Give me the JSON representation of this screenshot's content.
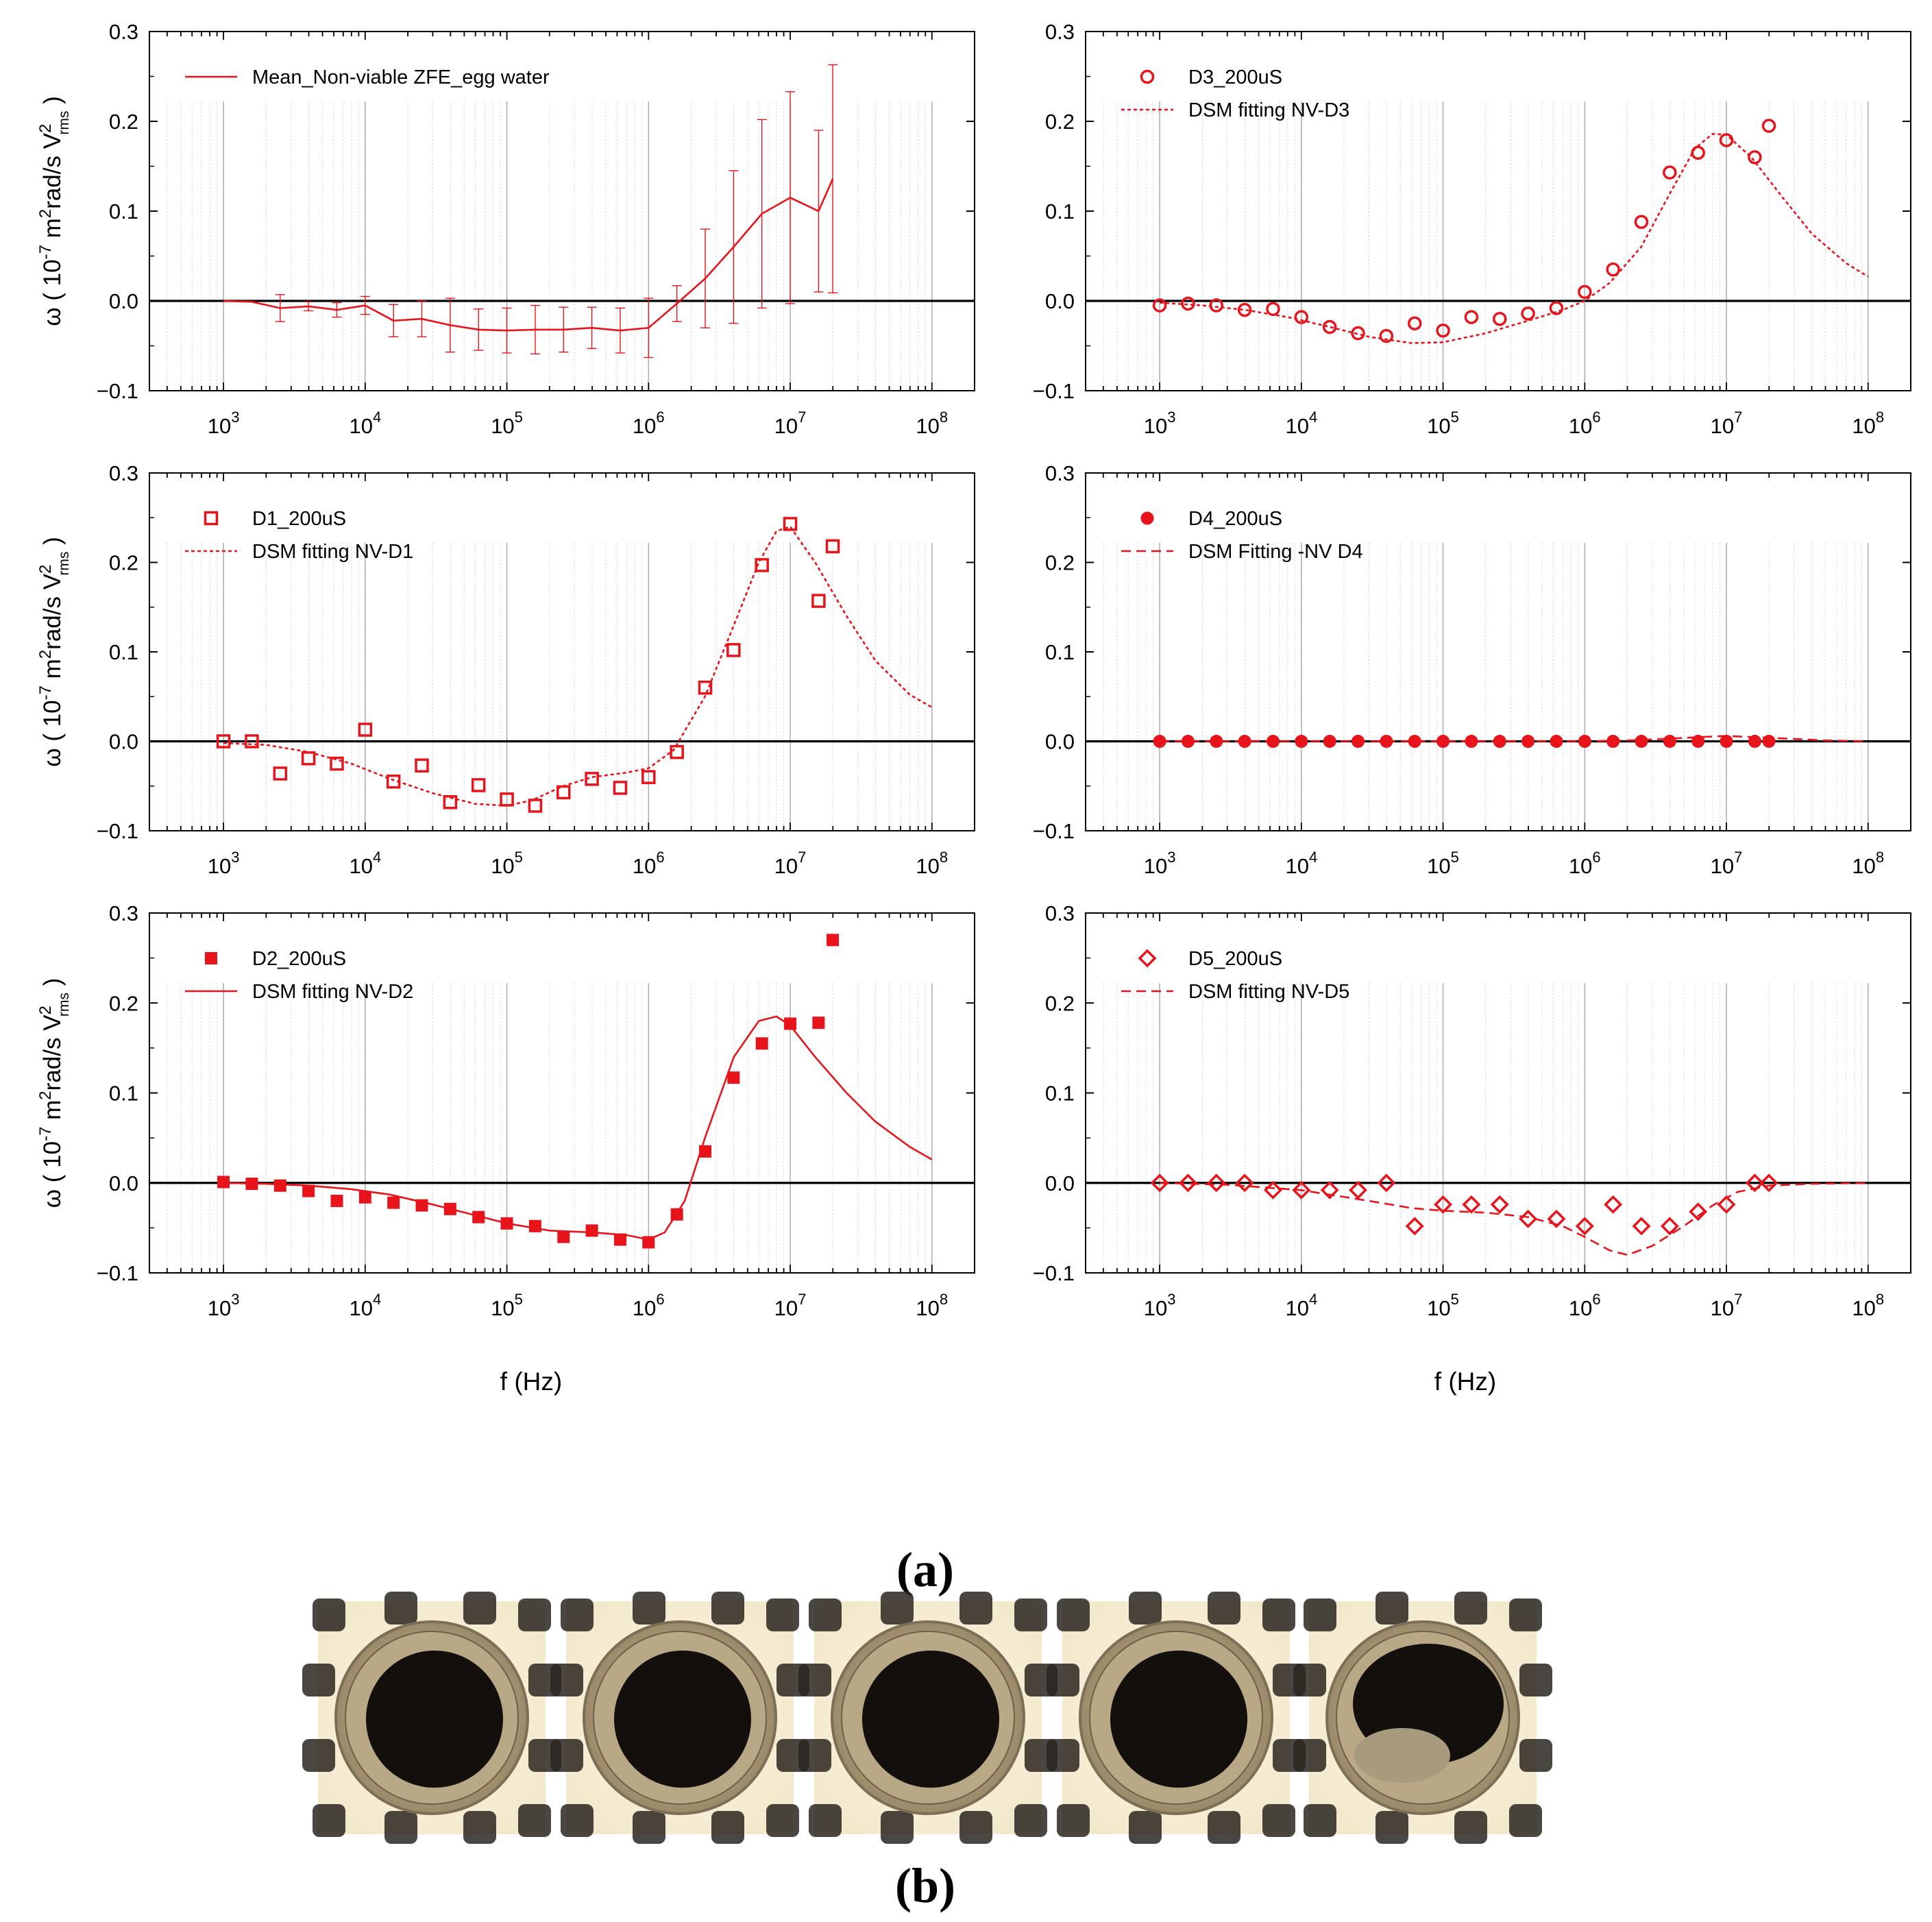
{
  "figure": {
    "axis_labels": {
      "ylabel_main": "ω ( 10",
      "ylabel_exp": "-7",
      "ylabel_unit": " m",
      "ylabel_sq": "2",
      "ylabel_rest": "rad/s V",
      "ylabel_v_sup": "2",
      "ylabel_v_sub": "rms",
      "ylabel_close": " )",
      "xlabel": "f (Hz)"
    },
    "panel_a_label": "(a)",
    "panel_b_label": "(b)"
  },
  "colors": {
    "data": "#e8141b",
    "axis": "#000000",
    "grid_major": "#b0b0b0",
    "grid_minor": "#d0d0d0"
  },
  "images": {
    "count": 5,
    "names": [
      "embryo-photo-1",
      "embryo-photo-2",
      "embryo-photo-3",
      "embryo-photo-4",
      "embryo-photo-5"
    ],
    "partial_fill": [
      0,
      0,
      0,
      0,
      0.45
    ]
  },
  "chart_data": [
    {
      "type": "line",
      "xscale": "log",
      "xlim": [
        300,
        200000000
      ],
      "ylim": [
        -0.1,
        0.3
      ],
      "xtick_exponents": [
        3,
        4,
        5,
        6,
        7,
        8
      ],
      "yticks": [
        "0.3",
        "0.2",
        "0.1",
        "0.0",
        "−0.1"
      ],
      "xlabel": "",
      "legend_position": "top-left",
      "series": [
        {
          "name": "Mean_Non-viable ZFE_egg water",
          "style": "solid-line-errorbars",
          "x": [
            1000,
            1585,
            2512,
            3981,
            6310,
            10000,
            15849,
            25119,
            39811,
            63096,
            100000,
            158489,
            251189,
            398107,
            630957,
            1000000,
            1584893,
            2511886,
            3981072,
            6309573,
            10000000,
            15848932,
            19952623
          ],
          "y": [
            0.0,
            -0.001,
            -0.008,
            -0.006,
            -0.01,
            -0.005,
            -0.022,
            -0.02,
            -0.027,
            -0.032,
            -0.033,
            -0.032,
            -0.032,
            -0.03,
            -0.033,
            -0.03,
            -0.003,
            0.025,
            0.06,
            0.097,
            0.115,
            0.1,
            0.136
          ],
          "err": [
            0,
            0,
            0.015,
            0.005,
            0.008,
            0.01,
            0.018,
            0.02,
            0.03,
            0.023,
            0.025,
            0.027,
            0.025,
            0.023,
            0.025,
            0.033,
            0.02,
            0.055,
            0.085,
            0.105,
            0.118,
            0.09,
            0.127
          ]
        }
      ]
    },
    {
      "type": "scatter",
      "xscale": "log",
      "xlim": [
        300,
        200000000
      ],
      "ylim": [
        -0.1,
        0.3
      ],
      "xtick_exponents": [
        3,
        4,
        5,
        6,
        7,
        8
      ],
      "yticks": [
        "0.3",
        "0.2",
        "0.1",
        "0.0",
        "−0.1"
      ],
      "xlabel": "",
      "legend_position": "top-left",
      "series": [
        {
          "name": "D3_200uS",
          "style": "open-circle",
          "x": [
            1000,
            1585,
            2512,
            3981,
            6310,
            10000,
            15849,
            25119,
            39811,
            63096,
            100000,
            158489,
            251189,
            398107,
            630957,
            1000000,
            1584893,
            2511886,
            3981072,
            6309573,
            10000000,
            15848932,
            19952623
          ],
          "y": [
            -0.005,
            -0.003,
            -0.005,
            -0.01,
            -0.009,
            -0.018,
            -0.029,
            -0.036,
            -0.039,
            -0.025,
            -0.033,
            -0.018,
            -0.02,
            -0.014,
            -0.008,
            0.01,
            0.035,
            0.088,
            0.143,
            0.165,
            0.179,
            0.16,
            0.195
          ]
        },
        {
          "name": "DSM fitting NV-D3",
          "style": "dotted-line",
          "x": [
            1000,
            2000,
            4000,
            8000,
            15000,
            30000,
            60000,
            100000,
            200000,
            400000,
            700000,
            1000000,
            1500000,
            2500000,
            4000000,
            6000000,
            8000000,
            10000000,
            15000000,
            25000000,
            40000000,
            70000000,
            100000000
          ],
          "y": [
            -0.002,
            -0.005,
            -0.01,
            -0.018,
            -0.028,
            -0.04,
            -0.047,
            -0.046,
            -0.036,
            -0.022,
            -0.01,
            0.0,
            0.02,
            0.06,
            0.12,
            0.17,
            0.186,
            0.185,
            0.16,
            0.115,
            0.075,
            0.042,
            0.027
          ]
        }
      ]
    },
    {
      "type": "scatter",
      "xscale": "log",
      "xlim": [
        300,
        200000000
      ],
      "ylim": [
        -0.1,
        0.3
      ],
      "xtick_exponents": [
        3,
        4,
        5,
        6,
        7,
        8
      ],
      "yticks": [
        "0.3",
        "0.2",
        "0.1",
        "0.0",
        "−0.1"
      ],
      "xlabel": "",
      "legend_position": "top-left",
      "series": [
        {
          "name": "D1_200uS",
          "style": "open-square",
          "x": [
            1000,
            1585,
            2512,
            3981,
            6310,
            10000,
            15849,
            25119,
            39811,
            63096,
            100000,
            158489,
            251189,
            398107,
            630957,
            1000000,
            1584893,
            2511886,
            3981072,
            6309573,
            10000000,
            15848932,
            19952623
          ],
          "y": [
            0.0,
            0.0,
            -0.036,
            -0.019,
            -0.025,
            0.013,
            -0.045,
            -0.027,
            -0.068,
            -0.049,
            -0.065,
            -0.072,
            -0.057,
            -0.042,
            -0.052,
            -0.04,
            -0.012,
            0.06,
            0.102,
            0.197,
            0.243,
            0.157,
            0.218
          ]
        },
        {
          "name": "DSM fitting NV-D1",
          "style": "dotted-line",
          "x": [
            1000,
            2000,
            4000,
            8000,
            15000,
            30000,
            60000,
            100000,
            150000,
            250000,
            400000,
            700000,
            1000000,
            1500000,
            2500000,
            4000000,
            6000000,
            8000000,
            10000000,
            15000000,
            25000000,
            40000000,
            70000000,
            100000000
          ],
          "y": [
            -0.002,
            -0.004,
            -0.012,
            -0.025,
            -0.042,
            -0.058,
            -0.07,
            -0.072,
            -0.066,
            -0.05,
            -0.04,
            -0.035,
            -0.03,
            -0.01,
            0.05,
            0.13,
            0.2,
            0.235,
            0.24,
            0.2,
            0.14,
            0.09,
            0.052,
            0.038
          ]
        }
      ]
    },
    {
      "type": "scatter",
      "xscale": "log",
      "xlim": [
        300,
        200000000
      ],
      "ylim": [
        -0.1,
        0.3
      ],
      "xtick_exponents": [
        3,
        4,
        5,
        6,
        7,
        8
      ],
      "yticks": [
        "0.3",
        "0.2",
        "0.1",
        "0.0",
        "−0.1"
      ],
      "xlabel": "",
      "legend_position": "top-left",
      "series": [
        {
          "name": "D4_200uS",
          "style": "filled-circle",
          "x": [
            1000,
            1585,
            2512,
            3981,
            6310,
            10000,
            15849,
            25119,
            39811,
            63096,
            100000,
            158489,
            251189,
            398107,
            630957,
            1000000,
            1584893,
            2511886,
            3981072,
            6309573,
            10000000,
            15848932,
            19952623
          ],
          "y": [
            0,
            0,
            0,
            0,
            0,
            0,
            0,
            0,
            0,
            0,
            0,
            0,
            0,
            0,
            0,
            0,
            0,
            0,
            0,
            0,
            0,
            0,
            0
          ]
        },
        {
          "name": "DSM Fitting -NV D4",
          "style": "dashed-line",
          "x": [
            1000,
            100000,
            1000000,
            2000000,
            4000000,
            7000000,
            10000000,
            20000000,
            50000000,
            100000000
          ],
          "y": [
            0,
            0,
            0,
            0.001,
            0.003,
            0.005,
            0.006,
            0.004,
            0.001,
            0.0
          ]
        }
      ]
    },
    {
      "type": "scatter",
      "xscale": "log",
      "xlim": [
        300,
        200000000
      ],
      "ylim": [
        -0.1,
        0.3
      ],
      "xtick_exponents": [
        3,
        4,
        5,
        6,
        7,
        8
      ],
      "yticks": [
        "0.3",
        "0.2",
        "0.1",
        "0.0",
        "−0.1"
      ],
      "xlabel": "f (Hz)",
      "legend_position": "top-left",
      "series": [
        {
          "name": "D2_200uS",
          "style": "filled-square",
          "x": [
            1000,
            1585,
            2512,
            3981,
            6310,
            10000,
            15849,
            25119,
            39811,
            63096,
            100000,
            158489,
            251189,
            398107,
            630957,
            1000000,
            1584893,
            2511886,
            3981072,
            6309573,
            10000000,
            15848932,
            19952623
          ],
          "y": [
            0.001,
            -0.001,
            -0.003,
            -0.009,
            -0.02,
            -0.016,
            -0.022,
            -0.025,
            -0.029,
            -0.038,
            -0.045,
            -0.048,
            -0.06,
            -0.053,
            -0.063,
            -0.066,
            -0.035,
            0.035,
            0.117,
            0.155,
            0.177,
            0.178,
            0.27
          ]
        },
        {
          "name": "DSM fitting NV-D2",
          "style": "solid-line",
          "x": [
            1000,
            2000,
            4000,
            8000,
            15000,
            30000,
            60000,
            100000,
            200000,
            400000,
            700000,
            1000000,
            1300000,
            1800000,
            2500000,
            4000000,
            6000000,
            8000000,
            10000000,
            15000000,
            25000000,
            40000000,
            70000000,
            100000000
          ],
          "y": [
            0.0,
            -0.001,
            -0.003,
            -0.007,
            -0.013,
            -0.024,
            -0.036,
            -0.045,
            -0.053,
            -0.055,
            -0.058,
            -0.063,
            -0.055,
            -0.02,
            0.05,
            0.14,
            0.18,
            0.185,
            0.175,
            0.14,
            0.1,
            0.068,
            0.04,
            0.026
          ]
        }
      ]
    },
    {
      "type": "scatter",
      "xscale": "log",
      "xlim": [
        300,
        200000000
      ],
      "ylim": [
        -0.1,
        0.3
      ],
      "xtick_exponents": [
        3,
        4,
        5,
        6,
        7,
        8
      ],
      "yticks": [
        "0.3",
        "0.2",
        "0.1",
        "0.0",
        "−0.1"
      ],
      "xlabel": "f (Hz)",
      "legend_position": "top-left",
      "series": [
        {
          "name": "D5_200uS",
          "style": "open-diamond",
          "x": [
            1000,
            1585,
            2512,
            3981,
            6310,
            10000,
            15849,
            25119,
            39811,
            63096,
            100000,
            158489,
            251189,
            398107,
            630957,
            1000000,
            1584893,
            2511886,
            3981072,
            6309573,
            10000000,
            15848932,
            19952623
          ],
          "y": [
            0.0,
            0.0,
            0.0,
            0.0,
            -0.008,
            -0.008,
            -0.008,
            -0.008,
            0.0,
            -0.048,
            -0.024,
            -0.024,
            -0.024,
            -0.04,
            -0.04,
            -0.048,
            -0.024,
            -0.048,
            -0.048,
            -0.032,
            -0.024,
            0.0,
            0.0
          ]
        },
        {
          "name": "DSM fitting NV-D5",
          "style": "dashed-line",
          "x": [
            1000,
            3000,
            10000,
            30000,
            60000,
            100000,
            200000,
            400000,
            700000,
            1000000,
            1500000,
            2000000,
            3000000,
            5000000,
            8000000,
            12000000,
            20000000,
            40000000,
            100000000
          ],
          "y": [
            0.0,
            -0.002,
            -0.008,
            -0.02,
            -0.028,
            -0.031,
            -0.033,
            -0.038,
            -0.048,
            -0.06,
            -0.075,
            -0.08,
            -0.07,
            -0.048,
            -0.025,
            -0.01,
            -0.003,
            -0.001,
            0.0
          ]
        }
      ]
    }
  ]
}
